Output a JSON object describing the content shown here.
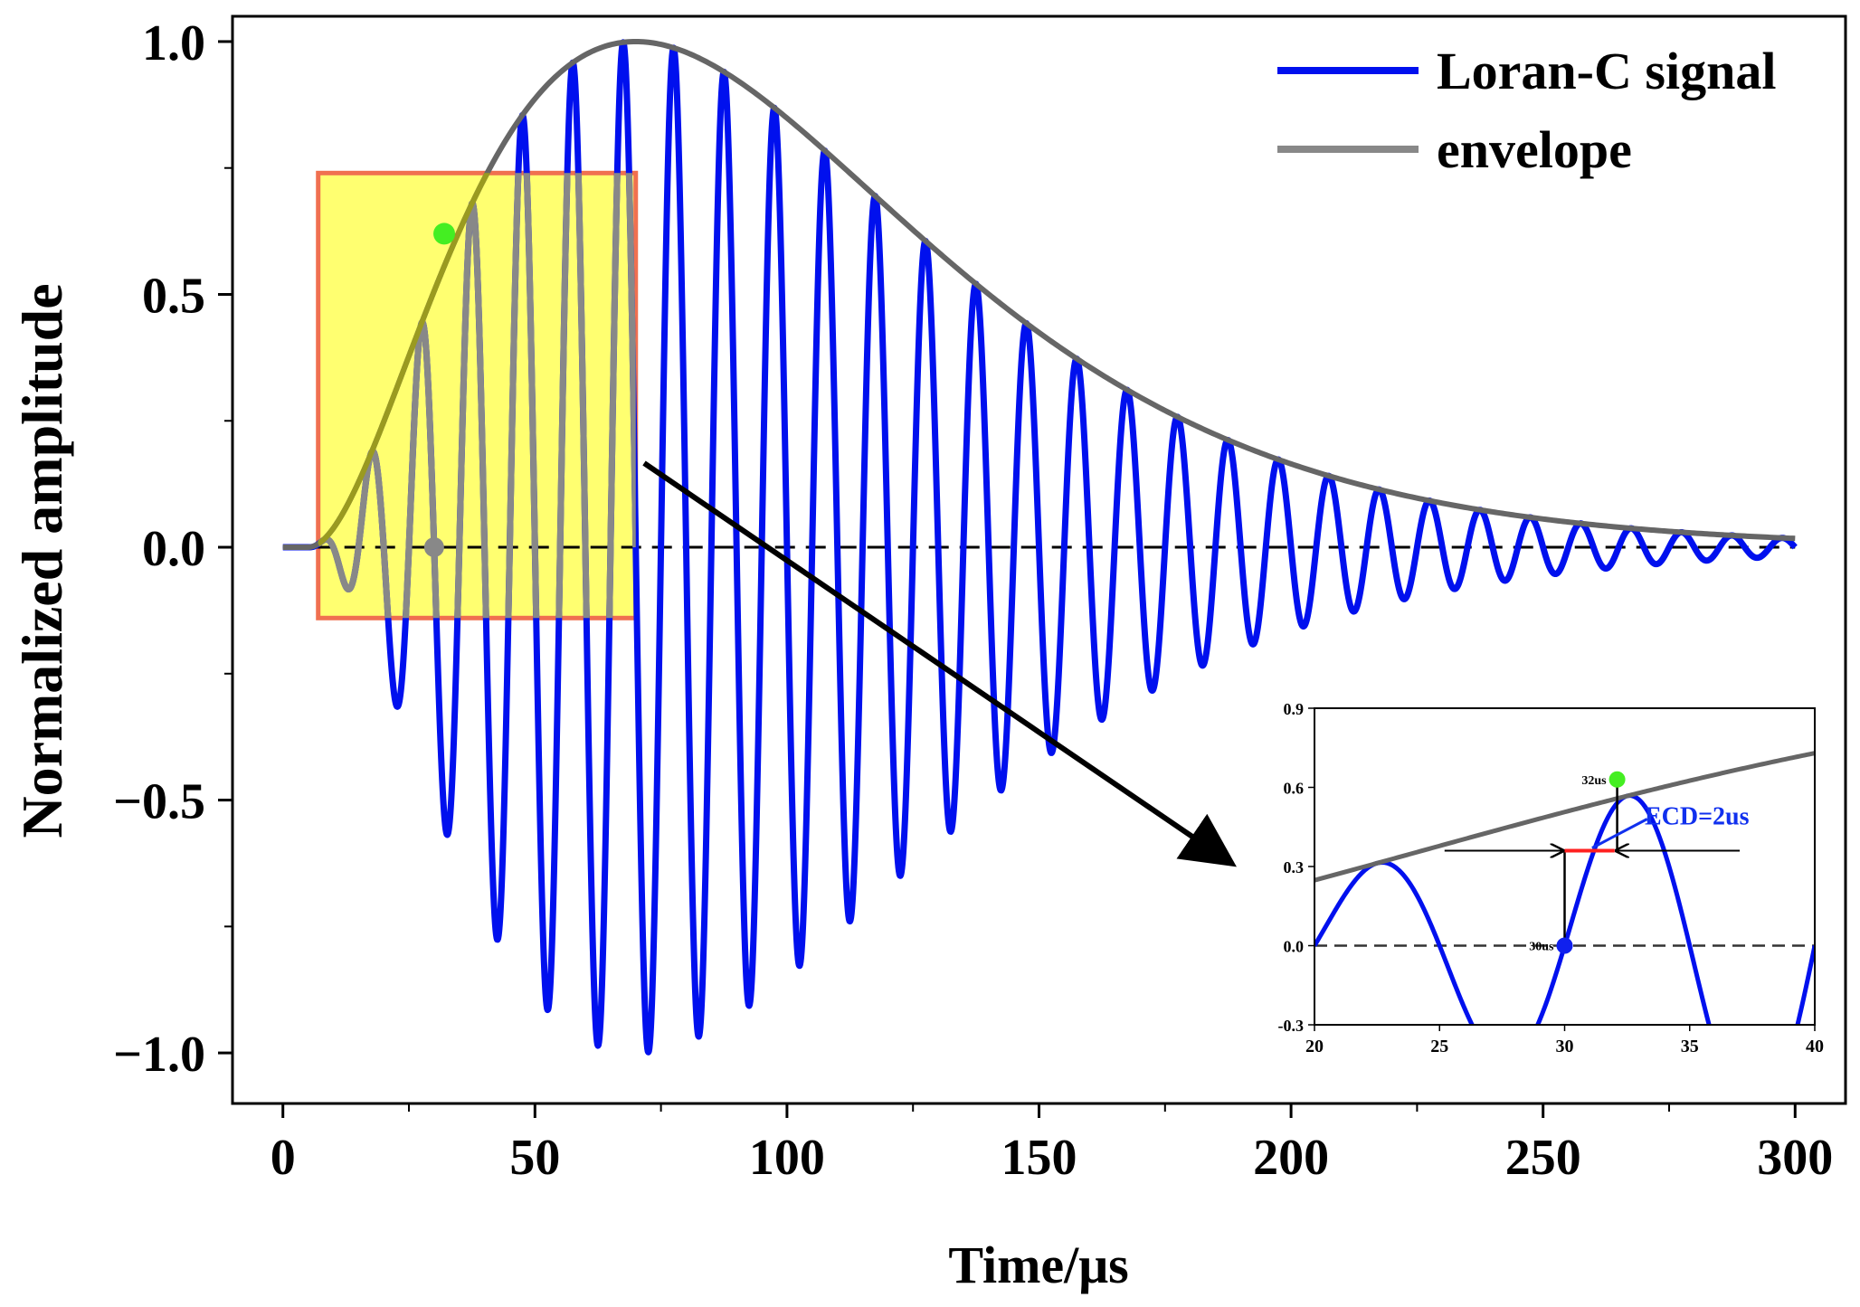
{
  "chart_data": {
    "type": "line",
    "xlabel": "Time/μs",
    "ylabel": "Normalized amplitude",
    "xlim": [
      -10,
      310
    ],
    "ylim": [
      -1.1,
      1.05
    ],
    "xticks": [
      0,
      50,
      100,
      150,
      200,
      250,
      300
    ],
    "xtick_labels": [
      "0",
      "50",
      "100",
      "150",
      "200",
      "250",
      "300"
    ],
    "yticks": [
      -1.0,
      -0.5,
      0.0,
      0.5,
      1.0
    ],
    "ytick_labels": [
      "−1.0",
      "−0.5",
      "0.0",
      "0.5",
      "1.0"
    ],
    "legend": {
      "position": "top-right",
      "entries": [
        {
          "name": "Loran-C signal",
          "color": "#0010ee"
        },
        {
          "name": "envelope",
          "color": "#888888"
        }
      ]
    },
    "series": [
      {
        "name": "Loran-C signal",
        "color": "#0010ee",
        "formula": "env(t)*sin(2*pi*0.1*(t-5))",
        "carrier_khz": 100
      },
      {
        "name": "envelope",
        "color": "#666666",
        "formula": "((t-5)/65)^2*exp(2*(1-(t-5)/65))"
      }
    ],
    "envelope_params": {
      "t0": 5,
      "tp": 65
    },
    "t_range": [
      0,
      300
    ],
    "zero_line": "dashed",
    "highlight_box": {
      "x_range": [
        7,
        70
      ],
      "y_range": [
        -0.14,
        0.74
      ],
      "color": "#ffff33"
    },
    "markers": [
      {
        "label": "32us",
        "x": 32,
        "y": 0.62,
        "color": "#44ee22"
      },
      {
        "label": "30us",
        "x": 30,
        "y": 0.0,
        "color": "#888888"
      }
    ],
    "inset": {
      "xlim": [
        20,
        40
      ],
      "ylim": [
        -0.3,
        0.9
      ],
      "xticks": [
        20,
        25,
        30,
        35,
        40
      ],
      "xtick_labels": [
        "20",
        "25",
        "30",
        "35",
        "40"
      ],
      "yticks": [
        -0.3,
        0.0,
        0.3,
        0.6,
        0.9
      ],
      "ytick_labels": [
        "-0.3",
        "0.0",
        "0.3",
        "0.6",
        "0.9"
      ],
      "annotation": "ECD=2us",
      "ecd_segment": {
        "x": [
          30,
          32
        ],
        "y": 0.36
      },
      "markers": [
        {
          "label": "32us",
          "x": 32.1,
          "y": 0.63,
          "color": "#44ee22"
        },
        {
          "label": "30us",
          "x": 30,
          "y": 0.0,
          "color": "#1020ee"
        }
      ]
    }
  }
}
